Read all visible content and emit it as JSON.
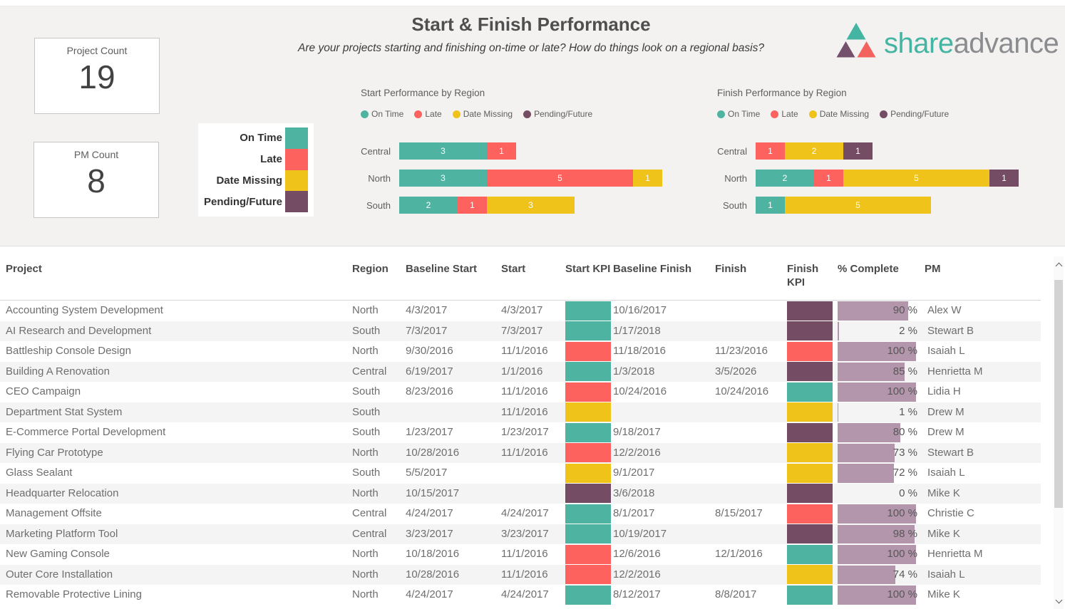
{
  "colors": {
    "on_time": "#4FB3A2",
    "late": "#FD625E",
    "date_missing": "#EFC319",
    "pending_future": "#744C64",
    "pct_bar": "#B496AC",
    "background": "#F3F2F1",
    "logo_teal": "#44B5A3",
    "logo_purple": "#73506B",
    "logo_coral": "#F4625D",
    "logo_gray": "#8A8C8F"
  },
  "cards": [
    {
      "label": "Project Count",
      "value": "19"
    },
    {
      "label": "PM Count",
      "value": "8"
    }
  ],
  "header": {
    "title": "Start & Finish Performance",
    "subtitle": "Are your projects starting and finishing on-time or late?  How do things look on a regional basis?"
  },
  "logo": {
    "text_primary": "share",
    "text_secondary": "advance"
  },
  "kpi_legend": {
    "items": [
      {
        "label": "On Time",
        "color_key": "on_time"
      },
      {
        "label": "Late",
        "color_key": "late"
      },
      {
        "label": "Date Missing",
        "color_key": "date_missing"
      },
      {
        "label": "Pending/Future",
        "color_key": "pending_future"
      }
    ]
  },
  "chart_data": [
    {
      "type": "bar",
      "orientation": "horizontal",
      "stacked": true,
      "title": "Start Performance by Region",
      "legend_position": "top",
      "categories": [
        "Central",
        "North",
        "South"
      ],
      "series": [
        {
          "name": "On Time",
          "color_key": "on_time",
          "values": [
            3,
            3,
            2
          ]
        },
        {
          "name": "Late",
          "color_key": "late",
          "values": [
            1,
            5,
            1
          ]
        },
        {
          "name": "Date Missing",
          "color_key": "date_missing",
          "values": [
            0,
            1,
            3
          ]
        },
        {
          "name": "Pending/Future",
          "color_key": "pending_future",
          "values": [
            0,
            0,
            0
          ]
        }
      ],
      "xlim": [
        0,
        9
      ],
      "grid": false
    },
    {
      "type": "bar",
      "orientation": "horizontal",
      "stacked": true,
      "title": "Finish Performance by Region",
      "legend_position": "top",
      "categories": [
        "Central",
        "North",
        "South"
      ],
      "series": [
        {
          "name": "On Time",
          "color_key": "on_time",
          "values": [
            0,
            2,
            1
          ]
        },
        {
          "name": "Late",
          "color_key": "late",
          "values": [
            1,
            1,
            0
          ]
        },
        {
          "name": "Date Missing",
          "color_key": "date_missing",
          "values": [
            2,
            5,
            5
          ]
        },
        {
          "name": "Pending/Future",
          "color_key": "pending_future",
          "values": [
            1,
            1,
            0
          ]
        }
      ],
      "xlim": [
        0,
        9
      ],
      "grid": false
    }
  ],
  "table": {
    "columns": [
      "Project",
      "Region",
      "Baseline Start",
      "Start",
      "Start KPI",
      "Baseline Finish",
      "Finish",
      "Finish KPI",
      "% Complete",
      "PM"
    ],
    "rows": [
      {
        "project": "Accounting System Development",
        "region": "North",
        "baseline_start": "4/3/2017",
        "start": "4/3/2017",
        "start_kpi": "on_time",
        "baseline_finish": "10/16/2017",
        "finish": "",
        "finish_kpi": "pending_future",
        "pct_complete": 90,
        "pm": "Alex W"
      },
      {
        "project": "AI Research and Development",
        "region": "South",
        "baseline_start": "7/3/2017",
        "start": "7/3/2017",
        "start_kpi": "on_time",
        "baseline_finish": "1/17/2018",
        "finish": "",
        "finish_kpi": "pending_future",
        "pct_complete": 2,
        "pm": "Stewart B"
      },
      {
        "project": "Battleship Console Design",
        "region": "North",
        "baseline_start": "9/30/2016",
        "start": "11/1/2016",
        "start_kpi": "late",
        "baseline_finish": "11/18/2016",
        "finish": "11/23/2016",
        "finish_kpi": "late",
        "pct_complete": 100,
        "pm": "Isaiah L"
      },
      {
        "project": "Building A Renovation",
        "region": "Central",
        "baseline_start": "6/19/2017",
        "start": "1/1/2016",
        "start_kpi": "on_time",
        "baseline_finish": "1/3/2018",
        "finish": "3/5/2026",
        "finish_kpi": "pending_future",
        "pct_complete": 85,
        "pm": "Henrietta M"
      },
      {
        "project": "CEO Campaign",
        "region": "South",
        "baseline_start": "8/23/2016",
        "start": "11/1/2016",
        "start_kpi": "late",
        "baseline_finish": "10/24/2016",
        "finish": "10/24/2016",
        "finish_kpi": "on_time",
        "pct_complete": 100,
        "pm": "Lidia H"
      },
      {
        "project": "Department Stat System",
        "region": "South",
        "baseline_start": "",
        "start": "11/1/2016",
        "start_kpi": "date_missing",
        "baseline_finish": "",
        "finish": "",
        "finish_kpi": "date_missing",
        "pct_complete": 1,
        "pm": "Drew M"
      },
      {
        "project": "E-Commerce Portal Development",
        "region": "South",
        "baseline_start": "1/23/2017",
        "start": "1/23/2017",
        "start_kpi": "on_time",
        "baseline_finish": "9/18/2017",
        "finish": "",
        "finish_kpi": "pending_future",
        "pct_complete": 80,
        "pm": "Drew M"
      },
      {
        "project": "Flying Car Prototype",
        "region": "North",
        "baseline_start": "10/28/2016",
        "start": "11/1/2016",
        "start_kpi": "late",
        "baseline_finish": "12/2/2016",
        "finish": "",
        "finish_kpi": "date_missing",
        "pct_complete": 73,
        "pm": "Stewart B"
      },
      {
        "project": "Glass Sealant",
        "region": "South",
        "baseline_start": "5/5/2017",
        "start": "",
        "start_kpi": "date_missing",
        "baseline_finish": "9/1/2017",
        "finish": "",
        "finish_kpi": "date_missing",
        "pct_complete": 72,
        "pm": "Isaiah L"
      },
      {
        "project": "Headquarter Relocation",
        "region": "North",
        "baseline_start": "10/15/2017",
        "start": "",
        "start_kpi": "pending_future",
        "baseline_finish": "3/6/2018",
        "finish": "",
        "finish_kpi": "pending_future",
        "pct_complete": 0,
        "pm": "Mike K"
      },
      {
        "project": "Management Offsite",
        "region": "Central",
        "baseline_start": "4/24/2017",
        "start": "4/24/2017",
        "start_kpi": "on_time",
        "baseline_finish": "8/1/2017",
        "finish": "8/15/2017",
        "finish_kpi": "late",
        "pct_complete": 100,
        "pm": "Christie C"
      },
      {
        "project": "Marketing Platform Tool",
        "region": "Central",
        "baseline_start": "3/23/2017",
        "start": "3/23/2017",
        "start_kpi": "on_time",
        "baseline_finish": "10/19/2017",
        "finish": "",
        "finish_kpi": "pending_future",
        "pct_complete": 98,
        "pm": "Mike K"
      },
      {
        "project": "New Gaming Console",
        "region": "North",
        "baseline_start": "10/18/2016",
        "start": "11/1/2016",
        "start_kpi": "late",
        "baseline_finish": "12/6/2016",
        "finish": "12/1/2016",
        "finish_kpi": "on_time",
        "pct_complete": 100,
        "pm": "Henrietta M"
      },
      {
        "project": "Outer Core Installation",
        "region": "North",
        "baseline_start": "10/28/2016",
        "start": "11/1/2016",
        "start_kpi": "late",
        "baseline_finish": "12/2/2016",
        "finish": "",
        "finish_kpi": "date_missing",
        "pct_complete": 74,
        "pm": "Isaiah L"
      },
      {
        "project": "Removable Protective Lining",
        "region": "North",
        "baseline_start": "4/24/2017",
        "start": "4/24/2017",
        "start_kpi": "on_time",
        "baseline_finish": "8/12/2017",
        "finish": "8/8/2017",
        "finish_kpi": "on_time",
        "pct_complete": 100,
        "pm": "Mike K"
      }
    ]
  }
}
